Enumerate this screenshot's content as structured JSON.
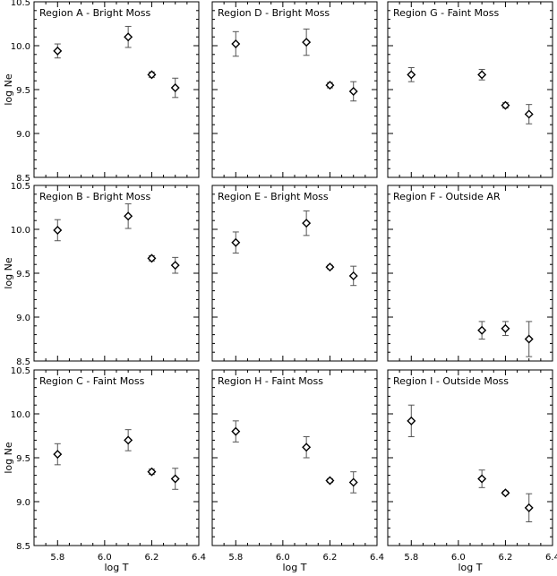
{
  "chart_data": [
    {
      "type": "scatter",
      "panel_title": "Region A - Bright Moss",
      "xlabel": "",
      "ylabel": "log Ne",
      "xlim": [
        5.7,
        6.4
      ],
      "ylim": [
        8.5,
        10.5
      ],
      "x_ticks": [],
      "y_ticks": [
        "8.5",
        "9.0",
        "9.5",
        "10.0",
        "10.5"
      ],
      "x": [
        5.8,
        6.1,
        6.2,
        6.3
      ],
      "y": [
        9.94,
        10.1,
        9.67,
        9.52
      ],
      "yerr": [
        0.08,
        0.12,
        0.03,
        0.11
      ]
    },
    {
      "type": "scatter",
      "panel_title": "Region D - Bright Moss",
      "xlabel": "",
      "ylabel": "",
      "xlim": [
        5.7,
        6.4
      ],
      "ylim": [
        8.5,
        10.5
      ],
      "x_ticks": [],
      "y_ticks": [],
      "x": [
        5.8,
        6.1,
        6.2,
        6.3
      ],
      "y": [
        10.02,
        10.04,
        9.55,
        9.48
      ],
      "yerr": [
        0.14,
        0.15,
        0.03,
        0.11
      ]
    },
    {
      "type": "scatter",
      "panel_title": "Region G - Faint Moss",
      "xlabel": "",
      "ylabel": "",
      "xlim": [
        5.7,
        6.4
      ],
      "ylim": [
        8.5,
        10.5
      ],
      "x_ticks": [],
      "y_ticks": [],
      "x": [
        5.8,
        6.1,
        6.2,
        6.3
      ],
      "y": [
        9.67,
        9.67,
        9.32,
        9.22
      ],
      "yerr": [
        0.08,
        0.06,
        0.03,
        0.11
      ]
    },
    {
      "type": "scatter",
      "panel_title": "Region B - Bright Moss",
      "xlabel": "",
      "ylabel": "log Ne",
      "xlim": [
        5.7,
        6.4
      ],
      "ylim": [
        8.5,
        10.5
      ],
      "x_ticks": [],
      "y_ticks": [
        "8.5",
        "9.0",
        "9.5",
        "10.0",
        "10.5"
      ],
      "x": [
        5.8,
        6.1,
        6.2,
        6.3
      ],
      "y": [
        9.99,
        10.15,
        9.67,
        9.59
      ],
      "yerr": [
        0.12,
        0.14,
        0.03,
        0.09
      ]
    },
    {
      "type": "scatter",
      "panel_title": "Region E - Bright Moss",
      "xlabel": "",
      "ylabel": "",
      "xlim": [
        5.7,
        6.4
      ],
      "ylim": [
        8.5,
        10.5
      ],
      "x_ticks": [],
      "y_ticks": [],
      "x": [
        5.8,
        6.1,
        6.2,
        6.3
      ],
      "y": [
        9.85,
        10.07,
        9.57,
        9.47
      ],
      "yerr": [
        0.12,
        0.14,
        0.02,
        0.11
      ]
    },
    {
      "type": "scatter",
      "panel_title": "Region F - Outside AR",
      "xlabel": "",
      "ylabel": "",
      "xlim": [
        5.7,
        6.4
      ],
      "ylim": [
        8.5,
        10.5
      ],
      "x_ticks": [],
      "y_ticks": [],
      "x": [
        6.1,
        6.2,
        6.3
      ],
      "y": [
        8.85,
        8.87,
        8.75
      ],
      "yerr": [
        0.1,
        0.08,
        0.2
      ]
    },
    {
      "type": "scatter",
      "panel_title": "Region C - Faint Moss",
      "xlabel": "log T",
      "ylabel": "log Ne",
      "xlim": [
        5.7,
        6.4
      ],
      "ylim": [
        8.5,
        10.5
      ],
      "x_ticks": [
        "5.8",
        "6.0",
        "6.2",
        "6.4"
      ],
      "y_ticks": [
        "8.5",
        "9.0",
        "9.5",
        "10.0",
        "10.5"
      ],
      "x": [
        5.8,
        6.1,
        6.2,
        6.3
      ],
      "y": [
        9.54,
        9.7,
        9.34,
        9.26
      ],
      "yerr": [
        0.12,
        0.12,
        0.03,
        0.12
      ]
    },
    {
      "type": "scatter",
      "panel_title": "Region H - Faint Moss",
      "xlabel": "log T",
      "ylabel": "",
      "xlim": [
        5.7,
        6.4
      ],
      "ylim": [
        8.5,
        10.5
      ],
      "x_ticks": [
        "5.8",
        "6.0",
        "6.2",
        "6.4"
      ],
      "y_ticks": [],
      "x": [
        5.8,
        6.1,
        6.2,
        6.3
      ],
      "y": [
        9.8,
        9.62,
        9.24,
        9.22
      ],
      "yerr": [
        0.12,
        0.12,
        0.02,
        0.12
      ]
    },
    {
      "type": "scatter",
      "panel_title": "Region I - Outside Moss",
      "xlabel": "log T",
      "ylabel": "",
      "xlim": [
        5.7,
        6.4
      ],
      "ylim": [
        8.5,
        10.5
      ],
      "x_ticks": [
        "5.8",
        "6.0",
        "6.2",
        "6.4"
      ],
      "y_ticks": [],
      "x": [
        5.8,
        6.1,
        6.2,
        6.3
      ],
      "y": [
        9.92,
        9.26,
        9.1,
        8.93
      ],
      "yerr": [
        0.18,
        0.1,
        0.02,
        0.16
      ]
    }
  ],
  "colors": {
    "marker": "#000000",
    "errorbar": "#555555",
    "axis": "#000000"
  }
}
